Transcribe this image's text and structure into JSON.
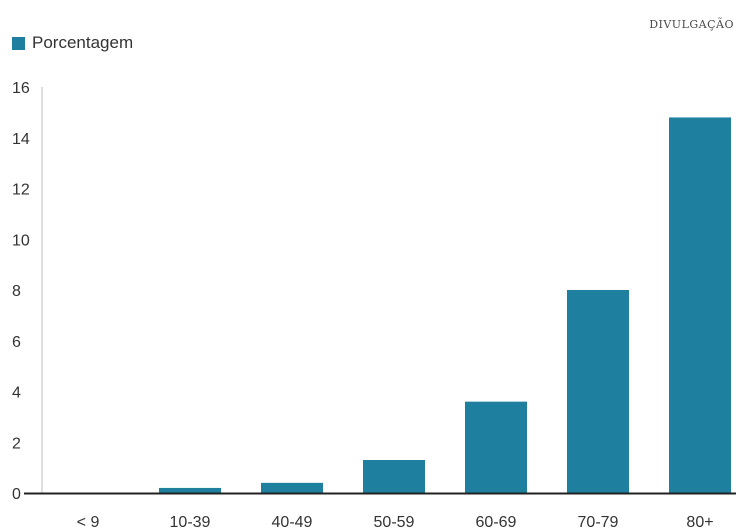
{
  "credit": "DIVULGAÇÃO",
  "colors": {
    "bar": "#1f7f9e",
    "axis": "#222222",
    "guide": "#bfbfbf"
  },
  "chart_data": {
    "type": "bar",
    "categories": [
      "< 9",
      "10-39",
      "40-49",
      "50-59",
      "60-69",
      "70-79",
      "80+"
    ],
    "series": [
      {
        "name": "Porcentagem",
        "values": [
          0,
          0.2,
          0.4,
          1.3,
          3.6,
          8.0,
          14.8
        ]
      }
    ],
    "ylim": [
      0,
      16
    ],
    "yticks": [
      0,
      2,
      4,
      6,
      8,
      10,
      12,
      14,
      16
    ],
    "legend_position": "top-left",
    "grid": false
  }
}
